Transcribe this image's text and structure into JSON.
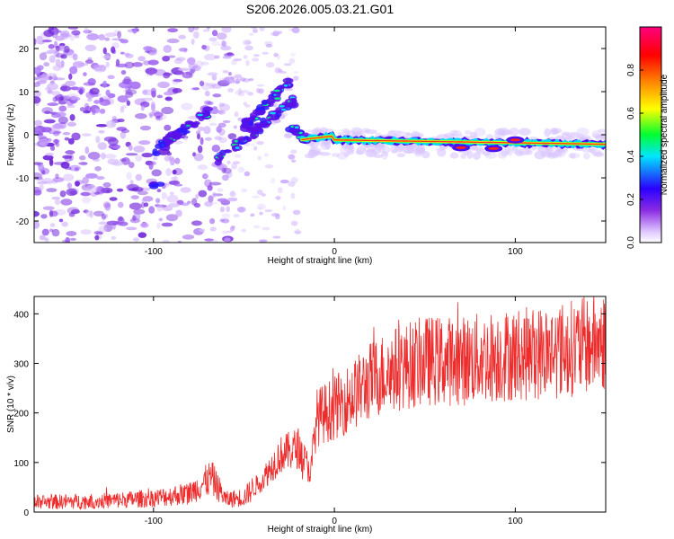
{
  "title": "S206.2026.005.03.21.G01",
  "chart_data": [
    {
      "type": "heatmap",
      "xlabel": "Height of straight line (km)",
      "ylabel": "Frequency (Hz)",
      "xlim": [
        -166,
        150
      ],
      "ylim": [
        -25,
        25
      ],
      "xticks": [
        -100,
        0,
        100
      ],
      "yticks": [
        -20,
        -10,
        0,
        10,
        20
      ],
      "colorbar": {
        "label": "Normalized spectral amplitude",
        "range": [
          0,
          1
        ],
        "ticks": [
          0.0,
          0.2,
          0.4,
          0.6,
          0.8
        ],
        "tick_labels": [
          "0.0",
          "0.2",
          "0.4",
          "0.6",
          "0.8"
        ]
      },
      "ridge": {
        "description_points": [
          {
            "x": -95,
            "y": -3
          },
          {
            "x": -80,
            "y": 2
          },
          {
            "x": -60,
            "y": 4
          },
          {
            "x": -40,
            "y": 8
          },
          {
            "x": -22,
            "y": 1
          },
          {
            "x": -12,
            "y": -0.5
          },
          {
            "x": 0,
            "y": -1
          },
          {
            "x": 50,
            "y": -1.5
          },
          {
            "x": 100,
            "y": -2
          },
          {
            "x": 150,
            "y": -2
          }
        ]
      }
    },
    {
      "type": "line",
      "xlabel": "Height of straight line (km)",
      "ylabel": "SNR (10 * v/v)",
      "xlim": [
        -166,
        150
      ],
      "ylim": [
        0,
        435
      ],
      "xticks": [
        -100,
        0,
        100
      ],
      "yticks": [
        0,
        100,
        200,
        300,
        400
      ],
      "series": [
        {
          "name": "SNR",
          "color": "#ee2c2c",
          "envelope_points": [
            {
              "x": -166,
              "y": 20
            },
            {
              "x": -130,
              "y": 22
            },
            {
              "x": -100,
              "y": 28
            },
            {
              "x": -80,
              "y": 38
            },
            {
              "x": -68,
              "y": 70
            },
            {
              "x": -60,
              "y": 25
            },
            {
              "x": -50,
              "y": 30
            },
            {
              "x": -40,
              "y": 65
            },
            {
              "x": -30,
              "y": 115
            },
            {
              "x": -20,
              "y": 130
            },
            {
              "x": -13,
              "y": 80
            },
            {
              "x": -10,
              "y": 190
            },
            {
              "x": 0,
              "y": 210
            },
            {
              "x": 10,
              "y": 235
            },
            {
              "x": 20,
              "y": 265
            },
            {
              "x": 30,
              "y": 285
            },
            {
              "x": 50,
              "y": 305
            },
            {
              "x": 70,
              "y": 305
            },
            {
              "x": 90,
              "y": 315
            },
            {
              "x": 110,
              "y": 320
            },
            {
              "x": 130,
              "y": 330
            },
            {
              "x": 150,
              "y": 345
            }
          ]
        }
      ]
    }
  ]
}
